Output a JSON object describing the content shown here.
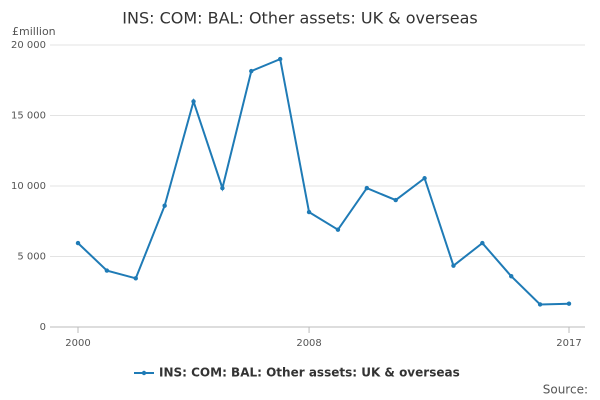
{
  "chart_data": {
    "type": "line",
    "title": "INS: COM: BAL: Other assets: UK & overseas",
    "y_label": "£million",
    "x": [
      2000,
      2001,
      2002,
      2003,
      2004,
      2005,
      2006,
      2007,
      2008,
      2009,
      2010,
      2011,
      2012,
      2013,
      2014,
      2015,
      2016,
      2017
    ],
    "series": [
      {
        "name": "INS: COM: BAL: Other assets: UK & overseas",
        "color": "#1f7bb6",
        "values": [
          5950,
          4000,
          3450,
          8600,
          16000,
          9850,
          18150,
          19000,
          8150,
          6900,
          9850,
          9000,
          10550,
          4350,
          5950,
          3600,
          1600,
          1650
        ]
      }
    ],
    "xlim": [
      2000,
      2017
    ],
    "xticks": [
      2000,
      2008,
      2017
    ],
    "ylim": [
      0,
      20000
    ],
    "yticks": [
      0,
      {
        "value": 5000,
        "label": "5 000"
      },
      {
        "value": 10000,
        "label": "10 000"
      },
      {
        "value": 15000,
        "label": "15 000"
      },
      {
        "value": 20000,
        "label": "20 000"
      }
    ],
    "grid": true,
    "legend": "bottom",
    "source": "Source:"
  }
}
